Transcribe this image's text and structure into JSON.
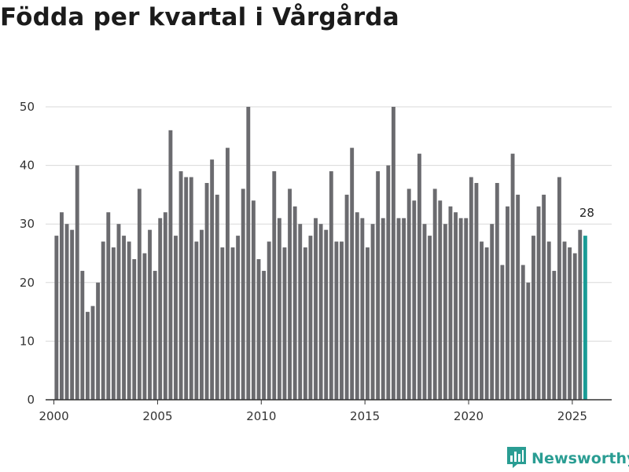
{
  "title": "Födda per kvartal i Vårgårda",
  "brand": {
    "name": "Newsworthy",
    "logo_icon": "newsworthy-logo-icon"
  },
  "colors": {
    "bar": "#6b6b6f",
    "highlight": "#1a9c96",
    "grid": "#d9d9d9",
    "axis": "#333333",
    "brand": "#2a9d93"
  },
  "chart_data": {
    "type": "bar",
    "title": "Födda per kvartal i Vårgårda",
    "xlabel": "",
    "ylabel": "",
    "ylim": [
      0,
      50
    ],
    "yticks": [
      0,
      10,
      20,
      30,
      40,
      50
    ],
    "xticks": [
      2000,
      2005,
      2010,
      2015,
      2020,
      2025
    ],
    "x_range": [
      1999.6,
      2026.9
    ],
    "grid": "horizontal",
    "highlight_index": 102,
    "highlight_label": "28",
    "categories": [
      "2000 K1",
      "2000 K2",
      "2000 K3",
      "2000 K4",
      "2001 K1",
      "2001 K2",
      "2001 K3",
      "2001 K4",
      "2002 K1",
      "2002 K2",
      "2002 K3",
      "2002 K4",
      "2003 K1",
      "2003 K2",
      "2003 K3",
      "2003 K4",
      "2004 K1",
      "2004 K2",
      "2004 K3",
      "2004 K4",
      "2005 K1",
      "2005 K2",
      "2005 K3",
      "2005 K4",
      "2006 K1",
      "2006 K2",
      "2006 K3",
      "2006 K4",
      "2007 K1",
      "2007 K2",
      "2007 K3",
      "2007 K4",
      "2008 K1",
      "2008 K2",
      "2008 K3",
      "2008 K4",
      "2009 K1",
      "2009 K2",
      "2009 K3",
      "2009 K4",
      "2010 K1",
      "2010 K2",
      "2010 K3",
      "2010 K4",
      "2011 K1",
      "2011 K2",
      "2011 K3",
      "2011 K4",
      "2012 K1",
      "2012 K2",
      "2012 K3",
      "2012 K4",
      "2013 K1",
      "2013 K2",
      "2013 K3",
      "2013 K4",
      "2014 K1",
      "2014 K2",
      "2014 K3",
      "2014 K4",
      "2015 K1",
      "2015 K2",
      "2015 K3",
      "2015 K4",
      "2016 K1",
      "2016 K2",
      "2016 K3",
      "2016 K4",
      "2017 K1",
      "2017 K2",
      "2017 K3",
      "2017 K4",
      "2018 K1",
      "2018 K2",
      "2018 K3",
      "2018 K4",
      "2019 K1",
      "2019 K2",
      "2019 K3",
      "2019 K4",
      "2020 K1",
      "2020 K2",
      "2020 K3",
      "2020 K4",
      "2021 K1",
      "2021 K2",
      "2021 K3",
      "2021 K4",
      "2022 K1",
      "2022 K2",
      "2022 K3",
      "2022 K4",
      "2023 K1",
      "2023 K2",
      "2023 K3",
      "2023 K4",
      "2024 K1",
      "2024 K2",
      "2024 K3",
      "2024 K4",
      "2025 K1",
      "2025 K2",
      "2025 K3"
    ],
    "values": [
      28,
      32,
      30,
      29,
      40,
      22,
      15,
      16,
      20,
      27,
      32,
      26,
      30,
      28,
      27,
      24,
      36,
      25,
      29,
      22,
      31,
      32,
      46,
      28,
      39,
      38,
      38,
      27,
      29,
      37,
      41,
      35,
      26,
      43,
      26,
      28,
      36,
      50,
      34,
      24,
      22,
      27,
      39,
      31,
      26,
      36,
      33,
      30,
      26,
      28,
      31,
      30,
      29,
      39,
      27,
      27,
      35,
      43,
      32,
      31,
      26,
      30,
      39,
      31,
      40,
      50,
      31,
      31,
      36,
      34,
      42,
      30,
      28,
      36,
      34,
      30,
      33,
      32,
      31,
      31,
      38,
      37,
      27,
      26,
      30,
      37,
      23,
      33,
      42,
      35,
      23,
      20,
      28,
      33,
      35,
      27,
      22,
      38,
      27,
      26,
      25,
      29,
      28
    ]
  }
}
